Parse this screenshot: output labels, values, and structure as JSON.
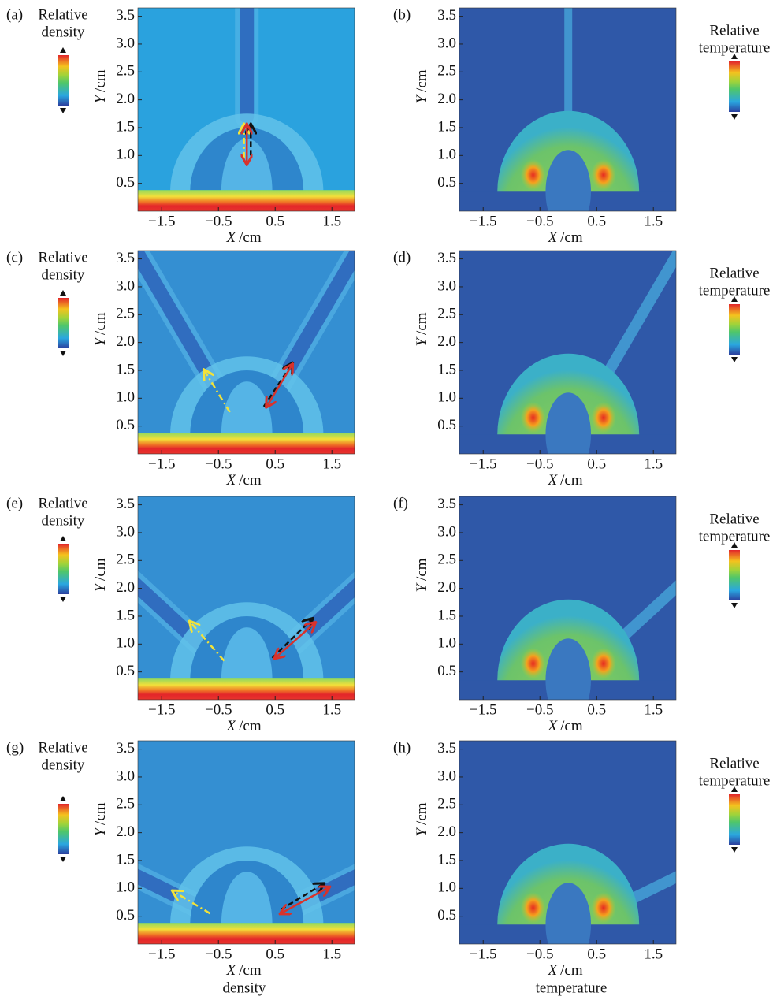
{
  "figure": {
    "axes": {
      "xlabel": {
        "var": "X",
        "unit": "/cm"
      },
      "ylabel": {
        "var": "Y",
        "unit": "/cm"
      },
      "xticks": [
        "−1.5",
        "−0.5",
        "0.5",
        "1.5"
      ],
      "yticks": [
        "0.5",
        "1.0",
        "1.5",
        "2.0",
        "2.5",
        "3.0",
        "3.5"
      ]
    },
    "panels": [
      {
        "label": "(a)",
        "colorbar_title": [
          "Relative",
          "density"
        ]
      },
      {
        "label": "(b)",
        "colorbar_title": [
          "Relative",
          "temperature"
        ]
      },
      {
        "label": "(c)",
        "colorbar_title": [
          "Relative",
          "density"
        ]
      },
      {
        "label": "(d)",
        "colorbar_title": [
          "Relative",
          "temperature"
        ]
      },
      {
        "label": "(e)",
        "colorbar_title": [
          "Relative",
          "density"
        ]
      },
      {
        "label": "(f)",
        "colorbar_title": [
          "Relative",
          "temperature"
        ]
      },
      {
        "label": "(g)",
        "colorbar_title": [
          "Relative",
          "density"
        ]
      },
      {
        "label": "(h)",
        "colorbar_title": [
          "Relative",
          "temperature"
        ]
      }
    ],
    "captions": [
      "density",
      "temperature"
    ]
  }
}
